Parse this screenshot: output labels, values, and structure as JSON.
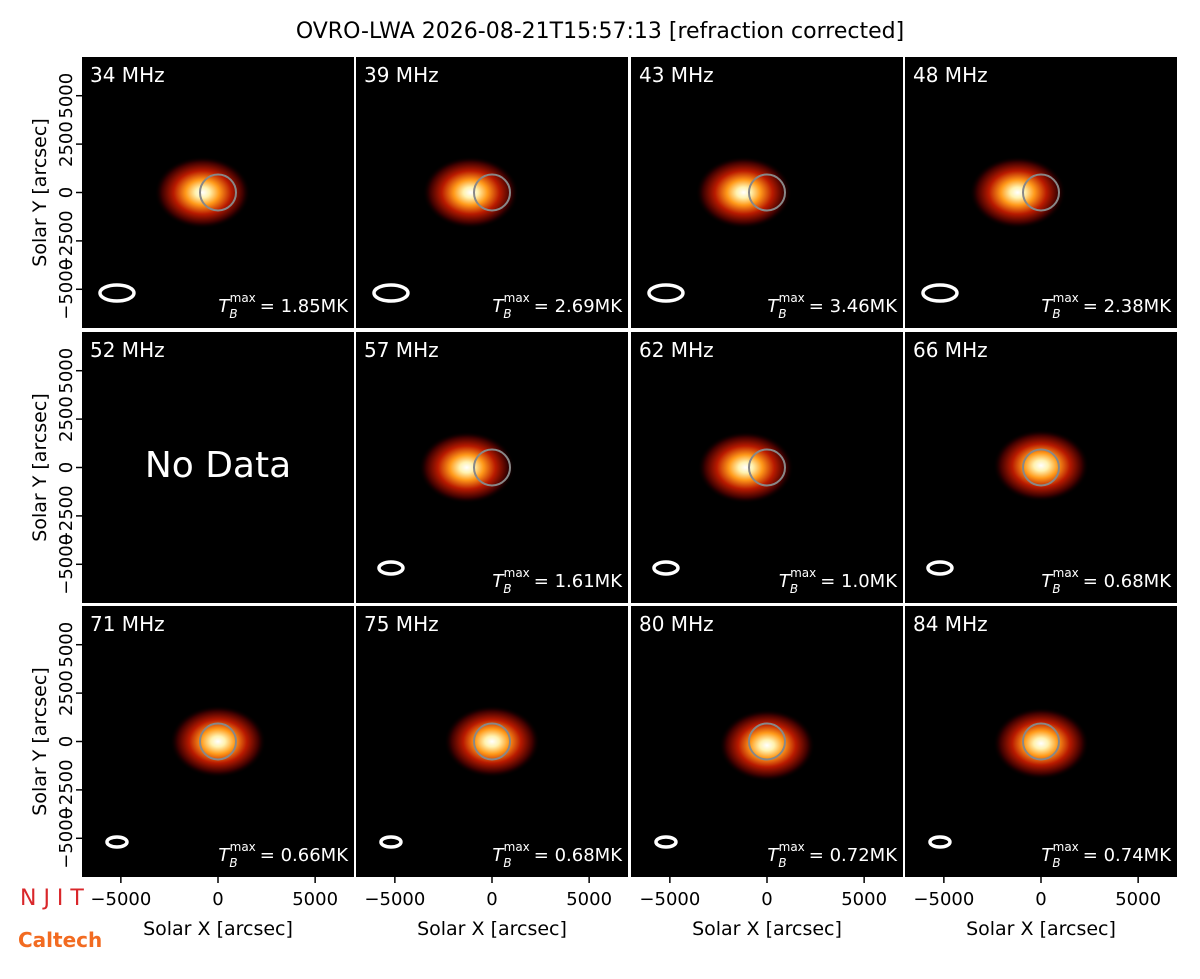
{
  "chart_data": {
    "type": "image-grid",
    "title": "OVRO-LWA 2026-08-21T15:57:13 [refraction corrected]",
    "xlabel": "Solar X [arcsec]",
    "ylabel": "Solar Y [arcsec]",
    "xlim": [
      -7000,
      7000
    ],
    "ylim": [
      -7000,
      7000
    ],
    "xticks": [
      {
        "value": -5000,
        "label": "−5000"
      },
      0,
      5000
    ],
    "yticks": [
      {
        "value": -5000,
        "label": "−5000"
      },
      {
        "value": -2500,
        "label": "−2500"
      },
      0,
      2500,
      5000
    ],
    "tb_symbol": {
      "base": "T",
      "sub": "B",
      "sup": "max"
    },
    "panels": [
      {
        "frequency": "34 MHz",
        "tb_max_label": "= 1.85MK",
        "peak_x": -800,
        "peak_y": 0
      },
      {
        "frequency": "39 MHz",
        "tb_max_label": "= 2.69MK",
        "peak_x": -1100,
        "peak_y": 0
      },
      {
        "frequency": "43 MHz",
        "tb_max_label": "= 3.46MK",
        "peak_x": -1200,
        "peak_y": 0
      },
      {
        "frequency": "48 MHz",
        "tb_max_label": "= 2.38MK",
        "peak_x": -1200,
        "peak_y": 0
      },
      {
        "frequency": "52 MHz",
        "message": "No Data"
      },
      {
        "frequency": "57 MHz",
        "tb_max_label": "= 1.61MK",
        "peak_x": -1300,
        "peak_y": 0
      },
      {
        "frequency": "62 MHz",
        "tb_max_label": "= 1.0MK",
        "peak_x": -1100,
        "peak_y": 0
      },
      {
        "frequency": "66 MHz",
        "tb_max_label": "= 0.68MK",
        "peak_x": 0,
        "peak_y": 100
      },
      {
        "frequency": "71 MHz",
        "tb_max_label": "= 0.66MK",
        "peak_x": 0,
        "peak_y": 0
      },
      {
        "frequency": "75 MHz",
        "tb_max_label": "= 0.68MK",
        "peak_x": 0,
        "peak_y": 0
      },
      {
        "frequency": "80 MHz",
        "tb_max_label": "= 0.72MK",
        "peak_x": 0,
        "peak_y": -200
      },
      {
        "frequency": "84 MHz",
        "tb_max_label": "= 0.74MK",
        "peak_x": 0,
        "peak_y": -100
      }
    ]
  },
  "logos": [
    "N J I T",
    "Caltech"
  ]
}
